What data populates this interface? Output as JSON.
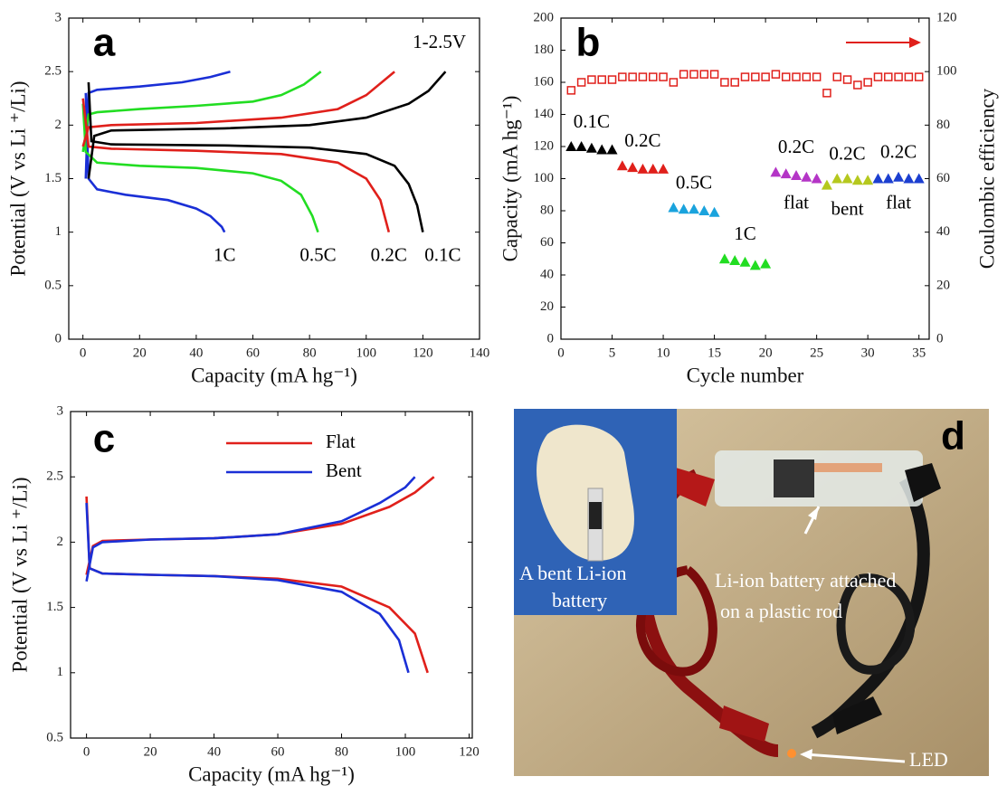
{
  "chart_data": [
    {
      "type": "line",
      "panel_label": "a",
      "annotation": "1-2.5V",
      "x_label": "Capacity (mA hg⁻¹)",
      "y_label": "Potential (V vs Li ⁺/Li)",
      "xlim": [
        -5,
        140
      ],
      "xticks": [
        0,
        20,
        40,
        60,
        80,
        100,
        120,
        140
      ],
      "ylim": [
        0,
        3
      ],
      "yticks": [
        0,
        0.5,
        1,
        1.5,
        2,
        2.5,
        3
      ],
      "series": [
        {
          "name": "1C",
          "color": "#1a2fd6",
          "x": [
            1,
            2,
            5,
            15,
            30,
            40,
            45,
            49,
            50,
            null,
            1,
            2,
            5,
            20,
            35,
            45,
            52
          ],
          "values": [
            2.3,
            1.5,
            1.4,
            1.35,
            1.3,
            1.22,
            1.15,
            1.05,
            1.0,
            null,
            1.5,
            2.3,
            2.33,
            2.36,
            2.4,
            2.45,
            2.5
          ]
        },
        {
          "name": "0.5C",
          "color": "#22dd22",
          "x": [
            0,
            1,
            5,
            20,
            40,
            60,
            70,
            77,
            81,
            83,
            null,
            0,
            2,
            5,
            20,
            40,
            60,
            70,
            78,
            84
          ],
          "values": [
            2.2,
            1.75,
            1.65,
            1.62,
            1.6,
            1.55,
            1.48,
            1.35,
            1.15,
            1.0,
            null,
            1.75,
            2.1,
            2.12,
            2.15,
            2.18,
            2.22,
            2.28,
            2.38,
            2.5
          ]
        },
        {
          "name": "0.2C",
          "color": "#e0201b",
          "x": [
            0,
            2,
            10,
            40,
            70,
            90,
            100,
            105,
            108,
            null,
            0,
            2,
            10,
            40,
            70,
            90,
            100,
            110
          ],
          "values": [
            2.25,
            1.8,
            1.78,
            1.76,
            1.73,
            1.65,
            1.5,
            1.3,
            1.0,
            null,
            1.8,
            1.98,
            2.0,
            2.02,
            2.07,
            2.15,
            2.28,
            2.5
          ]
        },
        {
          "name": "0.1C",
          "color": "#000000",
          "x": [
            2,
            3,
            10,
            50,
            80,
            100,
            110,
            115,
            118,
            120,
            null,
            2,
            4,
            10,
            50,
            80,
            100,
            115,
            122,
            128
          ],
          "values": [
            2.4,
            1.85,
            1.82,
            1.81,
            1.79,
            1.73,
            1.62,
            1.45,
            1.25,
            1.0,
            null,
            1.5,
            1.9,
            1.95,
            1.97,
            2.0,
            2.07,
            2.2,
            2.32,
            2.5
          ]
        }
      ]
    },
    {
      "type": "scatter",
      "panel_label": "b",
      "x_label": "Cycle number",
      "y_label": "Capacity (mA hg⁻¹)",
      "y2_label": "Coulombic efficiency",
      "xlim": [
        0,
        36
      ],
      "xticks": [
        0,
        5,
        10,
        15,
        20,
        25,
        30,
        35
      ],
      "ylim": [
        0,
        200
      ],
      "yticks": [
        0,
        20,
        40,
        60,
        80,
        100,
        120,
        140,
        160,
        180,
        200
      ],
      "y2lim": [
        0,
        120
      ],
      "y2ticks": [
        0,
        20,
        40,
        60,
        80,
        100,
        120
      ],
      "series": [
        {
          "name": "0.1C",
          "color": "#000000",
          "marker": "triangle",
          "x": [
            1,
            2,
            3,
            4,
            5
          ],
          "values": [
            120,
            120,
            119,
            118,
            118
          ]
        },
        {
          "name": "0.2C",
          "color": "#e0201b",
          "marker": "triangle",
          "x": [
            6,
            7,
            8,
            9,
            10
          ],
          "values": [
            108,
            107,
            106,
            106,
            106
          ]
        },
        {
          "name": "0.5C",
          "color": "#1aa3dd",
          "marker": "triangle",
          "x": [
            11,
            12,
            13,
            14,
            15
          ],
          "values": [
            82,
            81,
            81,
            80,
            79
          ]
        },
        {
          "name": "1C",
          "color": "#22dd22",
          "marker": "triangle",
          "x": [
            16,
            17,
            18,
            19,
            20
          ],
          "values": [
            50,
            49,
            48,
            46,
            47
          ]
        },
        {
          "name": "0.2C",
          "condition": "flat",
          "color": "#b435c6",
          "marker": "triangle",
          "x": [
            21,
            22,
            23,
            24,
            25
          ],
          "values": [
            104,
            103,
            102,
            101,
            100
          ]
        },
        {
          "name": "0.2C",
          "condition": "bent",
          "color": "#b5c81e",
          "marker": "triangle",
          "x": [
            26,
            27,
            28,
            29,
            30
          ],
          "values": [
            96,
            100,
            100,
            99,
            99
          ]
        },
        {
          "name": "0.2C",
          "condition": "flat",
          "color": "#1c3fd0",
          "marker": "triangle",
          "x": [
            31,
            32,
            33,
            34,
            35
          ],
          "values": [
            100,
            100,
            101,
            100,
            100
          ]
        },
        {
          "color": "#e0201b",
          "marker": "square",
          "axis": "y2",
          "x": [
            1,
            2,
            3,
            4,
            5,
            6,
            7,
            8,
            9,
            10,
            11,
            12,
            13,
            14,
            15,
            16,
            17,
            18,
            19,
            20,
            21,
            22,
            23,
            24,
            25,
            26,
            27,
            28,
            29,
            30,
            31,
            32,
            33,
            34,
            35
          ],
          "values": [
            93,
            96,
            97,
            97,
            97,
            98,
            98,
            98,
            98,
            98,
            96,
            99,
            99,
            99,
            99,
            96,
            96,
            98,
            98,
            98,
            99,
            98,
            98,
            98,
            98,
            92,
            98,
            97,
            95,
            96,
            98,
            98,
            98,
            98,
            98
          ]
        }
      ]
    },
    {
      "type": "line",
      "panel_label": "c",
      "legend": "upper center",
      "x_label": "Capacity (mA hg⁻¹)",
      "y_label": "Potential (V vs Li ⁺/Li)",
      "xlim": [
        -5,
        121
      ],
      "xticks": [
        0,
        20,
        40,
        60,
        80,
        100,
        120
      ],
      "ylim": [
        0.5,
        3
      ],
      "yticks": [
        0.5,
        1,
        1.5,
        2,
        2.5,
        3
      ],
      "series": [
        {
          "name": "Flat",
          "color": "#e0201b",
          "x": [
            0,
            1,
            5,
            20,
            40,
            60,
            80,
            95,
            103,
            107,
            null,
            0,
            2,
            5,
            20,
            40,
            60,
            80,
            95,
            103,
            109
          ],
          "values": [
            2.35,
            1.8,
            1.76,
            1.75,
            1.74,
            1.72,
            1.66,
            1.5,
            1.3,
            1.0,
            null,
            1.75,
            1.97,
            2.01,
            2.02,
            2.03,
            2.06,
            2.14,
            2.27,
            2.38,
            2.5
          ]
        },
        {
          "name": "Bent",
          "color": "#1a2fd6",
          "x": [
            0,
            1,
            5,
            20,
            40,
            60,
            80,
            92,
            98,
            101,
            null,
            0,
            2,
            5,
            20,
            40,
            60,
            80,
            92,
            100,
            103
          ],
          "values": [
            2.3,
            1.8,
            1.76,
            1.75,
            1.74,
            1.71,
            1.62,
            1.45,
            1.25,
            1.0,
            null,
            1.7,
            1.96,
            2.0,
            2.02,
            2.03,
            2.06,
            2.16,
            2.3,
            2.42,
            2.5
          ]
        }
      ]
    }
  ],
  "photo_panel": {
    "panel_label": "d",
    "inset_caption": [
      "A bent Li-ion",
      "battery"
    ],
    "battery_caption": [
      "Li-ion battery attached",
      "on a plastic rod"
    ],
    "led_caption": "LED"
  }
}
